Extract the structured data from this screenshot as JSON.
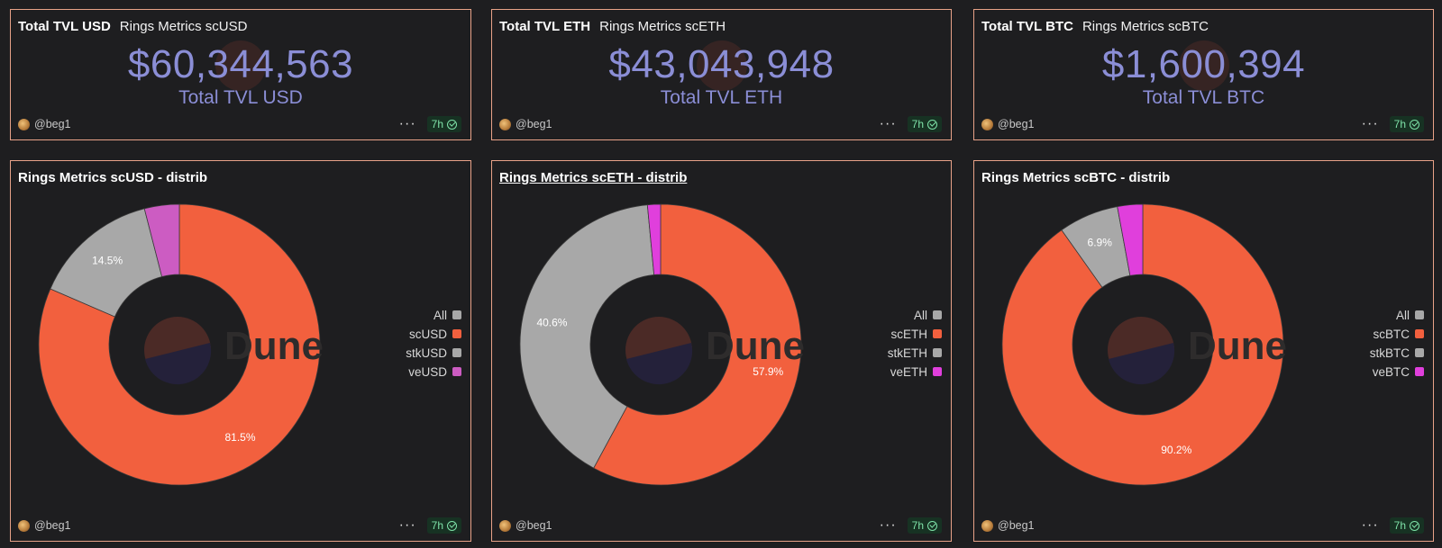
{
  "colors": {
    "accent_value": "#8b8ed6",
    "border": "#e8a288",
    "badge_text": "#7ee2a8"
  },
  "kpis": [
    {
      "title": "Total TVL USD",
      "subtitle": "Rings Metrics scUSD",
      "value": "$60,344,563",
      "label": "Total TVL USD",
      "author": "@beg1",
      "age": "7h"
    },
    {
      "title": "Total TVL ETH",
      "subtitle": "Rings Metrics scETH",
      "value": "$43,043,948",
      "label": "Total TVL ETH",
      "author": "@beg1",
      "age": "7h"
    },
    {
      "title": "Total TVL BTC",
      "subtitle": "Rings Metrics scBTC",
      "value": "$1,600,394",
      "label": "Total TVL BTC",
      "author": "@beg1",
      "age": "7h"
    }
  ],
  "dist_panels": [
    {
      "title": "Rings Metrics scUSD - distrib",
      "author": "@beg1",
      "age": "7h",
      "watermark": "Dune"
    },
    {
      "title": "Rings Metrics scETH - distrib",
      "author": "@beg1",
      "age": "7h",
      "watermark": "Dune"
    },
    {
      "title": "Rings Metrics scBTC - distrib",
      "author": "@beg1",
      "age": "7h",
      "watermark": "Dune"
    }
  ],
  "chart_data": [
    {
      "type": "pie",
      "title": "Rings Metrics scUSD - distrib",
      "legend_position": "right",
      "legend": [
        {
          "name": "All",
          "color": "#a8a8a8"
        },
        {
          "name": "scUSD",
          "color": "#f2603e"
        },
        {
          "name": "stkUSD",
          "color": "#a8a8a8"
        },
        {
          "name": "veUSD",
          "color": "#cc5cc2"
        }
      ],
      "slices": [
        {
          "name": "scUSD",
          "value": 81.5,
          "color": "#f2603e",
          "label": "81.5%"
        },
        {
          "name": "stkUSD",
          "value": 14.5,
          "color": "#a8a8a8",
          "label": "14.5%"
        },
        {
          "name": "veUSD",
          "value": 4.0,
          "color": "#cc5cc2",
          "label": ""
        }
      ]
    },
    {
      "type": "pie",
      "title": "Rings Metrics scETH - distrib",
      "legend_position": "right",
      "legend": [
        {
          "name": "All",
          "color": "#a8a8a8"
        },
        {
          "name": "scETH",
          "color": "#f2603e"
        },
        {
          "name": "stkETH",
          "color": "#a8a8a8"
        },
        {
          "name": "veETH",
          "color": "#e03fdc"
        }
      ],
      "slices": [
        {
          "name": "scETH",
          "value": 57.9,
          "color": "#f2603e",
          "label": "57.9%"
        },
        {
          "name": "stkETH",
          "value": 40.6,
          "color": "#a8a8a8",
          "label": "40.6%"
        },
        {
          "name": "veETH",
          "value": 1.5,
          "color": "#e03fdc",
          "label": ""
        }
      ]
    },
    {
      "type": "pie",
      "title": "Rings Metrics scBTC - distrib",
      "legend_position": "right",
      "legend": [
        {
          "name": "All",
          "color": "#a8a8a8"
        },
        {
          "name": "scBTC",
          "color": "#f2603e"
        },
        {
          "name": "stkBTC",
          "color": "#a8a8a8"
        },
        {
          "name": "veBTC",
          "color": "#e03fdc"
        }
      ],
      "slices": [
        {
          "name": "scBTC",
          "value": 90.2,
          "color": "#f2603e",
          "label": "90.2%"
        },
        {
          "name": "stkBTC",
          "value": 6.9,
          "color": "#a8a8a8",
          "label": "6.9%"
        },
        {
          "name": "veBTC",
          "value": 2.9,
          "color": "#e03fdc",
          "label": ""
        }
      ]
    }
  ]
}
